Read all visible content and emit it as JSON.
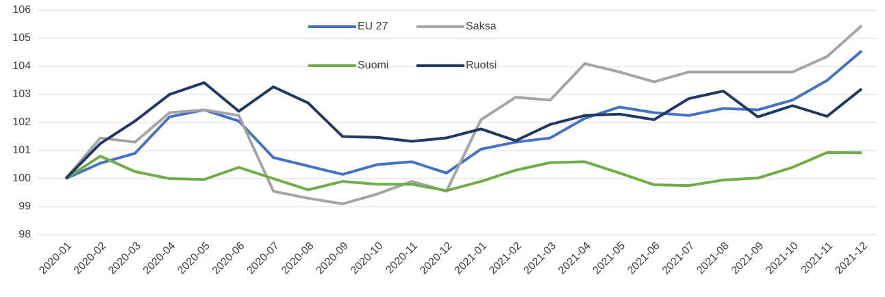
{
  "chart_data": {
    "type": "line",
    "categories": [
      "2020-01",
      "2020-02",
      "2020-03",
      "2020-04",
      "2020-05",
      "2020-06",
      "2020-07",
      "2020-08",
      "2020-09",
      "2020-10",
      "2020-11",
      "2020-12",
      "2021-01",
      "2021-02",
      "2021-03",
      "2021-04",
      "2021-05",
      "2021-06",
      "2021-07",
      "2021-08",
      "2021-09",
      "2021-10",
      "2021-11",
      "2021-12"
    ],
    "series": [
      {
        "name": "EU 27",
        "color": "#4472c4",
        "values": [
          100,
          100.55,
          100.9,
          102.2,
          102.45,
          102.05,
          100.75,
          100.45,
          100.15,
          100.5,
          100.6,
          100.2,
          101.05,
          101.3,
          101.45,
          102.15,
          102.55,
          102.35,
          102.25,
          102.5,
          102.45,
          102.8,
          103.5,
          104.55
        ]
      },
      {
        "name": "Saksa",
        "color": "#a5a5a5",
        "values": [
          100,
          101.45,
          101.3,
          102.35,
          102.45,
          102.25,
          99.55,
          99.3,
          99.1,
          99.45,
          99.9,
          99.55,
          102.1,
          102.9,
          102.8,
          104.1,
          103.8,
          103.45,
          103.8,
          103.8,
          103.8,
          103.8,
          104.35,
          105.45
        ]
      },
      {
        "name": "Suomi",
        "color": "#70ad47",
        "values": [
          100,
          100.8,
          100.25,
          100,
          99.97,
          100.4,
          100.0,
          99.6,
          99.9,
          99.8,
          99.8,
          99.57,
          99.9,
          100.3,
          100.57,
          100.6,
          100.2,
          99.78,
          99.75,
          99.95,
          100.02,
          100.4,
          100.93,
          100.92
        ]
      },
      {
        "name": "Ruotsi",
        "color": "#203864",
        "values": [
          100,
          101.25,
          102.05,
          103.0,
          103.42,
          102.4,
          103.27,
          102.7,
          101.5,
          101.47,
          101.33,
          101.45,
          101.77,
          101.35,
          101.93,
          102.25,
          102.3,
          102.1,
          102.85,
          103.12,
          102.2,
          102.6,
          102.22,
          103.2
        ]
      }
    ],
    "ylim": [
      98,
      106
    ],
    "yticks": [
      98,
      99,
      100,
      101,
      102,
      103,
      104,
      105,
      106
    ],
    "grid": true,
    "legend": "top"
  }
}
